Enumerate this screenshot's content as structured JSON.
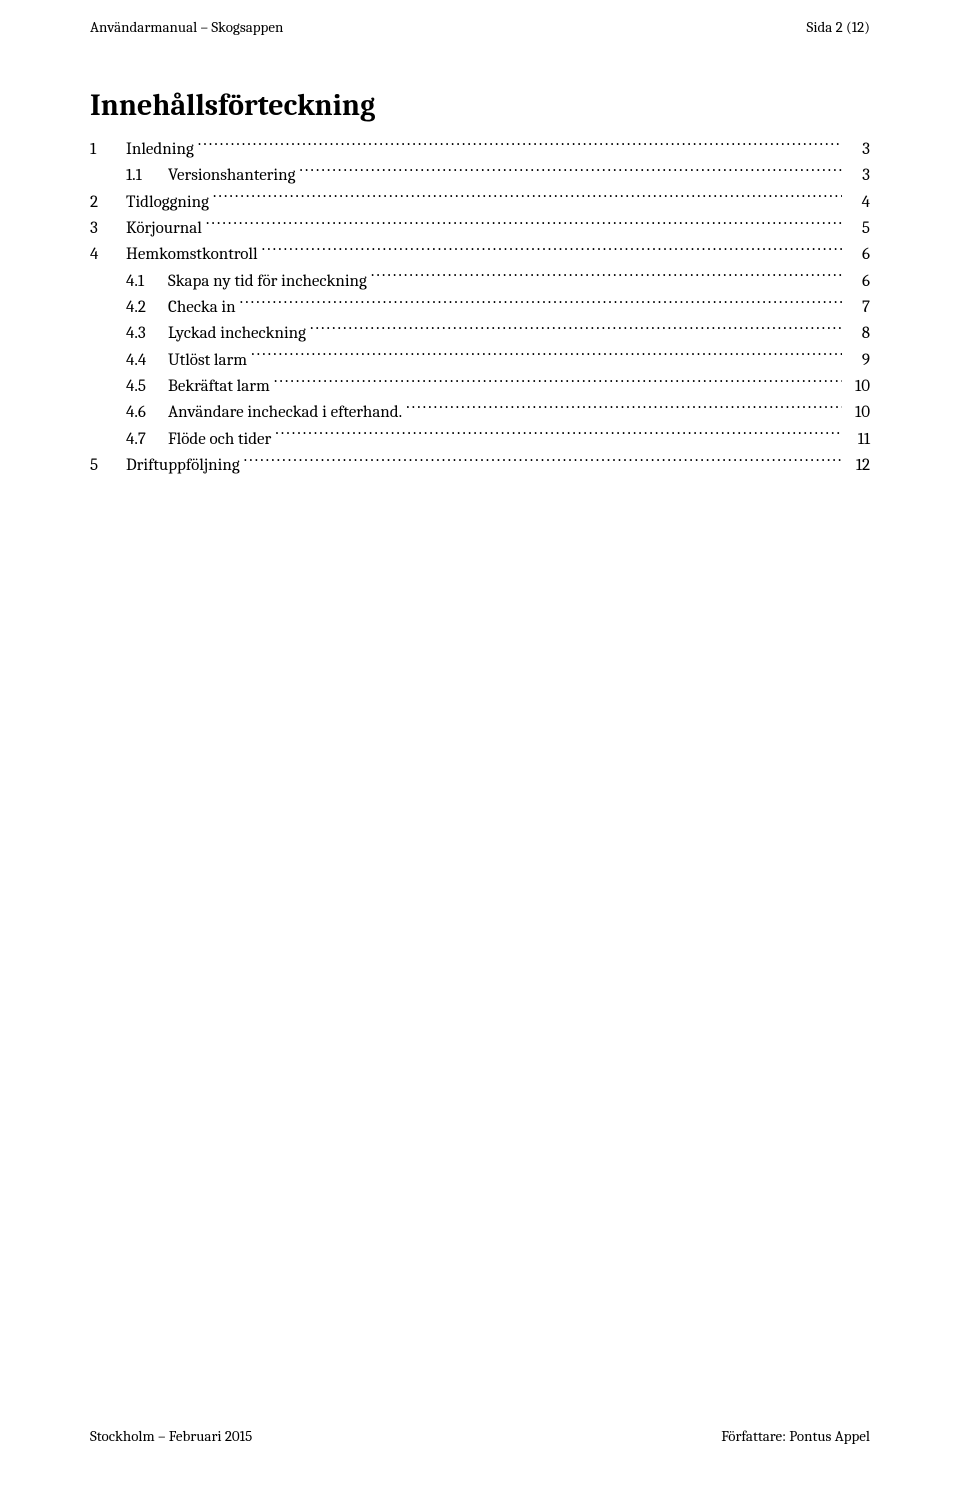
{
  "header": {
    "left": "Användarmanual – Skogsappen",
    "right": "Sida 2 (12)"
  },
  "toc": {
    "title": "Innehållsförteckning",
    "entries": [
      {
        "level": 1,
        "num": "1",
        "label": "Inledning",
        "page": "3"
      },
      {
        "level": 2,
        "num": "1.1",
        "label": "Versionshantering",
        "page": "3"
      },
      {
        "level": 1,
        "num": "2",
        "label": "Tidloggning",
        "page": "4"
      },
      {
        "level": 1,
        "num": "3",
        "label": "Körjournal",
        "page": "5"
      },
      {
        "level": 1,
        "num": "4",
        "label": "Hemkomstkontroll",
        "page": "6"
      },
      {
        "level": 2,
        "num": "4.1",
        "label": "Skapa ny tid för incheckning",
        "page": "6"
      },
      {
        "level": 2,
        "num": "4.2",
        "label": "Checka in",
        "page": "7"
      },
      {
        "level": 2,
        "num": "4.3",
        "label": "Lyckad incheckning",
        "page": "8"
      },
      {
        "level": 2,
        "num": "4.4",
        "label": "Utlöst larm",
        "page": "9"
      },
      {
        "level": 2,
        "num": "4.5",
        "label": "Bekräftat larm",
        "page": "10"
      },
      {
        "level": 2,
        "num": "4.6",
        "label": "Användare incheckad i efterhand.",
        "page": "10"
      },
      {
        "level": 2,
        "num": "4.7",
        "label": "Flöde och tider",
        "page": "11"
      },
      {
        "level": 1,
        "num": "5",
        "label": "Driftuppföljning",
        "page": "12"
      }
    ]
  },
  "footer": {
    "left": "Stockholm – Februari 2015",
    "right": "Författare: Pontus Appel"
  }
}
